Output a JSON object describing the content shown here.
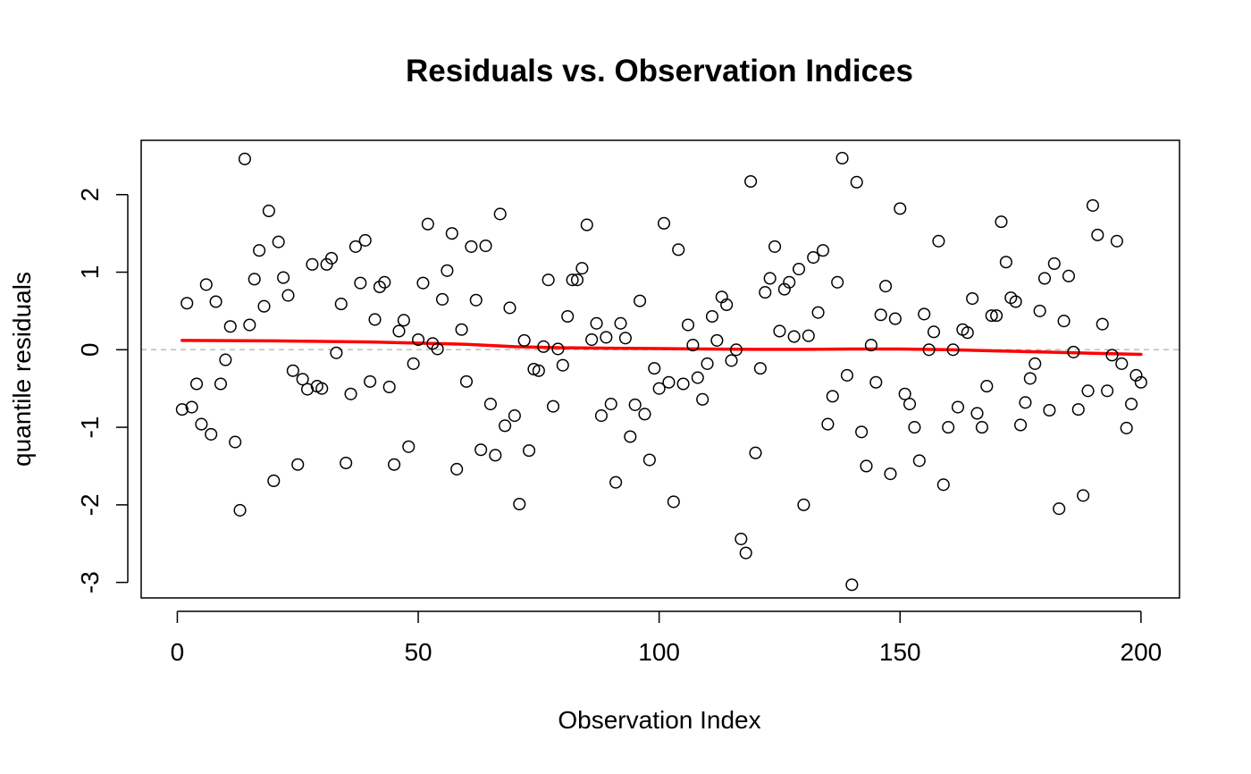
{
  "chart_data": {
    "type": "scatter",
    "title": "Residuals vs. Observation Indices",
    "xlabel": "Observation Index",
    "ylabel": "quantile residuals",
    "xlim": [
      -7.5,
      208
    ],
    "ylim": [
      -3.2,
      2.7
    ],
    "x_ticks": [
      0,
      50,
      100,
      150,
      200
    ],
    "y_ticks": [
      -3,
      -2,
      -1,
      0,
      1,
      2
    ],
    "reference_line": {
      "y": 0,
      "style": "dashed",
      "color": "#bebebe"
    },
    "grid": false,
    "legend": "none",
    "point_style": {
      "shape": "open-circle",
      "color": "#000000"
    },
    "smooth_color": "#ff0000",
    "x": [
      1,
      2,
      3,
      4,
      5,
      6,
      7,
      8,
      9,
      10,
      11,
      12,
      13,
      14,
      15,
      16,
      17,
      18,
      19,
      20,
      21,
      22,
      23,
      24,
      25,
      26,
      27,
      28,
      29,
      30,
      31,
      32,
      33,
      34,
      35,
      36,
      37,
      38,
      39,
      40,
      41,
      42,
      43,
      44,
      45,
      46,
      47,
      48,
      49,
      50,
      51,
      52,
      53,
      54,
      55,
      56,
      57,
      58,
      59,
      60,
      61,
      62,
      63,
      64,
      65,
      66,
      67,
      68,
      69,
      70,
      71,
      72,
      73,
      74,
      75,
      76,
      77,
      78,
      79,
      80,
      81,
      82,
      83,
      84,
      85,
      86,
      87,
      88,
      89,
      90,
      91,
      92,
      93,
      94,
      95,
      96,
      97,
      98,
      99,
      100,
      101,
      102,
      103,
      104,
      105,
      106,
      107,
      108,
      109,
      110,
      111,
      112,
      113,
      114,
      115,
      116,
      117,
      118,
      119,
      120,
      121,
      122,
      123,
      124,
      125,
      126,
      127,
      128,
      129,
      130,
      131,
      132,
      133,
      134,
      135,
      136,
      137,
      138,
      139,
      140,
      141,
      142,
      143,
      144,
      145,
      146,
      147,
      148,
      149,
      150,
      151,
      152,
      153,
      154,
      155,
      156,
      157,
      158,
      159,
      160,
      161,
      162,
      163,
      164,
      165,
      166,
      167,
      168,
      169,
      170,
      171,
      172,
      173,
      174,
      175,
      176,
      177,
      178,
      179,
      180,
      181,
      182,
      183,
      184,
      185,
      186,
      187,
      188,
      189,
      190,
      191,
      192,
      193,
      194,
      195,
      196,
      197,
      198,
      199,
      200
    ],
    "y": [
      -0.77,
      0.6,
      -0.74,
      -0.44,
      -0.96,
      0.84,
      -1.09,
      0.62,
      -0.44,
      -0.13,
      0.3,
      -1.19,
      -2.07,
      2.46,
      0.32,
      0.91,
      1.28,
      0.56,
      1.79,
      -1.69,
      1.39,
      0.93,
      0.7,
      -0.27,
      -1.48,
      -0.38,
      -0.51,
      1.1,
      -0.47,
      -0.5,
      1.1,
      1.18,
      -0.04,
      0.59,
      -1.46,
      -0.57,
      1.33,
      0.86,
      1.41,
      -0.41,
      0.39,
      0.81,
      0.87,
      -0.48,
      -1.48,
      0.24,
      0.38,
      -1.25,
      -0.18,
      0.13,
      0.86,
      1.62,
      0.08,
      0.01,
      0.65,
      1.02,
      1.5,
      -1.54,
      0.26,
      -0.41,
      1.33,
      0.64,
      -1.29,
      1.34,
      -0.7,
      -1.36,
      1.75,
      -0.98,
      0.54,
      -0.85,
      -1.99,
      0.12,
      -1.3,
      -0.25,
      -0.27,
      0.04,
      0.9,
      -0.73,
      0.01,
      -0.2,
      0.43,
      0.9,
      0.9,
      1.05,
      1.61,
      0.13,
      0.34,
      -0.85,
      0.16,
      -0.7,
      -1.71,
      0.34,
      0.15,
      -1.12,
      -0.71,
      0.63,
      -0.83,
      -1.42,
      -0.24,
      -0.5,
      1.63,
      -0.42,
      -1.96,
      1.29,
      -0.44,
      0.32,
      0.06,
      -0.36,
      -0.64,
      -0.18,
      0.43,
      0.12,
      0.68,
      0.58,
      -0.14,
      0.0,
      -2.44,
      -2.62,
      2.17,
      -1.33,
      -0.24,
      0.74,
      0.92,
      1.33,
      0.24,
      0.78,
      0.87,
      0.17,
      1.04,
      -2.0,
      0.18,
      1.19,
      0.48,
      1.28,
      -0.96,
      -0.6,
      0.87,
      2.47,
      -0.33,
      -3.03,
      2.16,
      -1.06,
      -1.5,
      0.06,
      -0.42,
      0.45,
      0.82,
      -1.6,
      0.4,
      1.82,
      -0.57,
      -0.7,
      -1.0,
      -1.43,
      0.46,
      0.0,
      0.23,
      1.4,
      -1.74,
      -1.0,
      0.0,
      -0.74,
      0.26,
      0.22,
      0.66,
      -0.82,
      -1.0,
      -0.47,
      0.44,
      0.44,
      1.65,
      1.13,
      0.67,
      0.62,
      -0.97,
      -0.68,
      -0.37,
      -0.18,
      0.5,
      0.92,
      -0.78,
      1.11,
      -2.05,
      0.37,
      0.95,
      -0.03,
      -0.77,
      -1.88,
      -0.53,
      1.86,
      1.48,
      0.33,
      -0.53,
      -0.07,
      1.4,
      -0.18,
      -1.01,
      -0.7,
      -0.33,
      -0.42
    ],
    "smooth_x": [
      1,
      20,
      40,
      60,
      70,
      80,
      90,
      100,
      110,
      120,
      130,
      140,
      150,
      160,
      170,
      180,
      190,
      200
    ],
    "smooth_y": [
      0.12,
      0.115,
      0.1,
      0.07,
      0.04,
      0.025,
      0.02,
      0.015,
      0.01,
      0.005,
      0.005,
      0.01,
      0.01,
      0.0,
      -0.015,
      -0.03,
      -0.045,
      -0.06
    ]
  }
}
